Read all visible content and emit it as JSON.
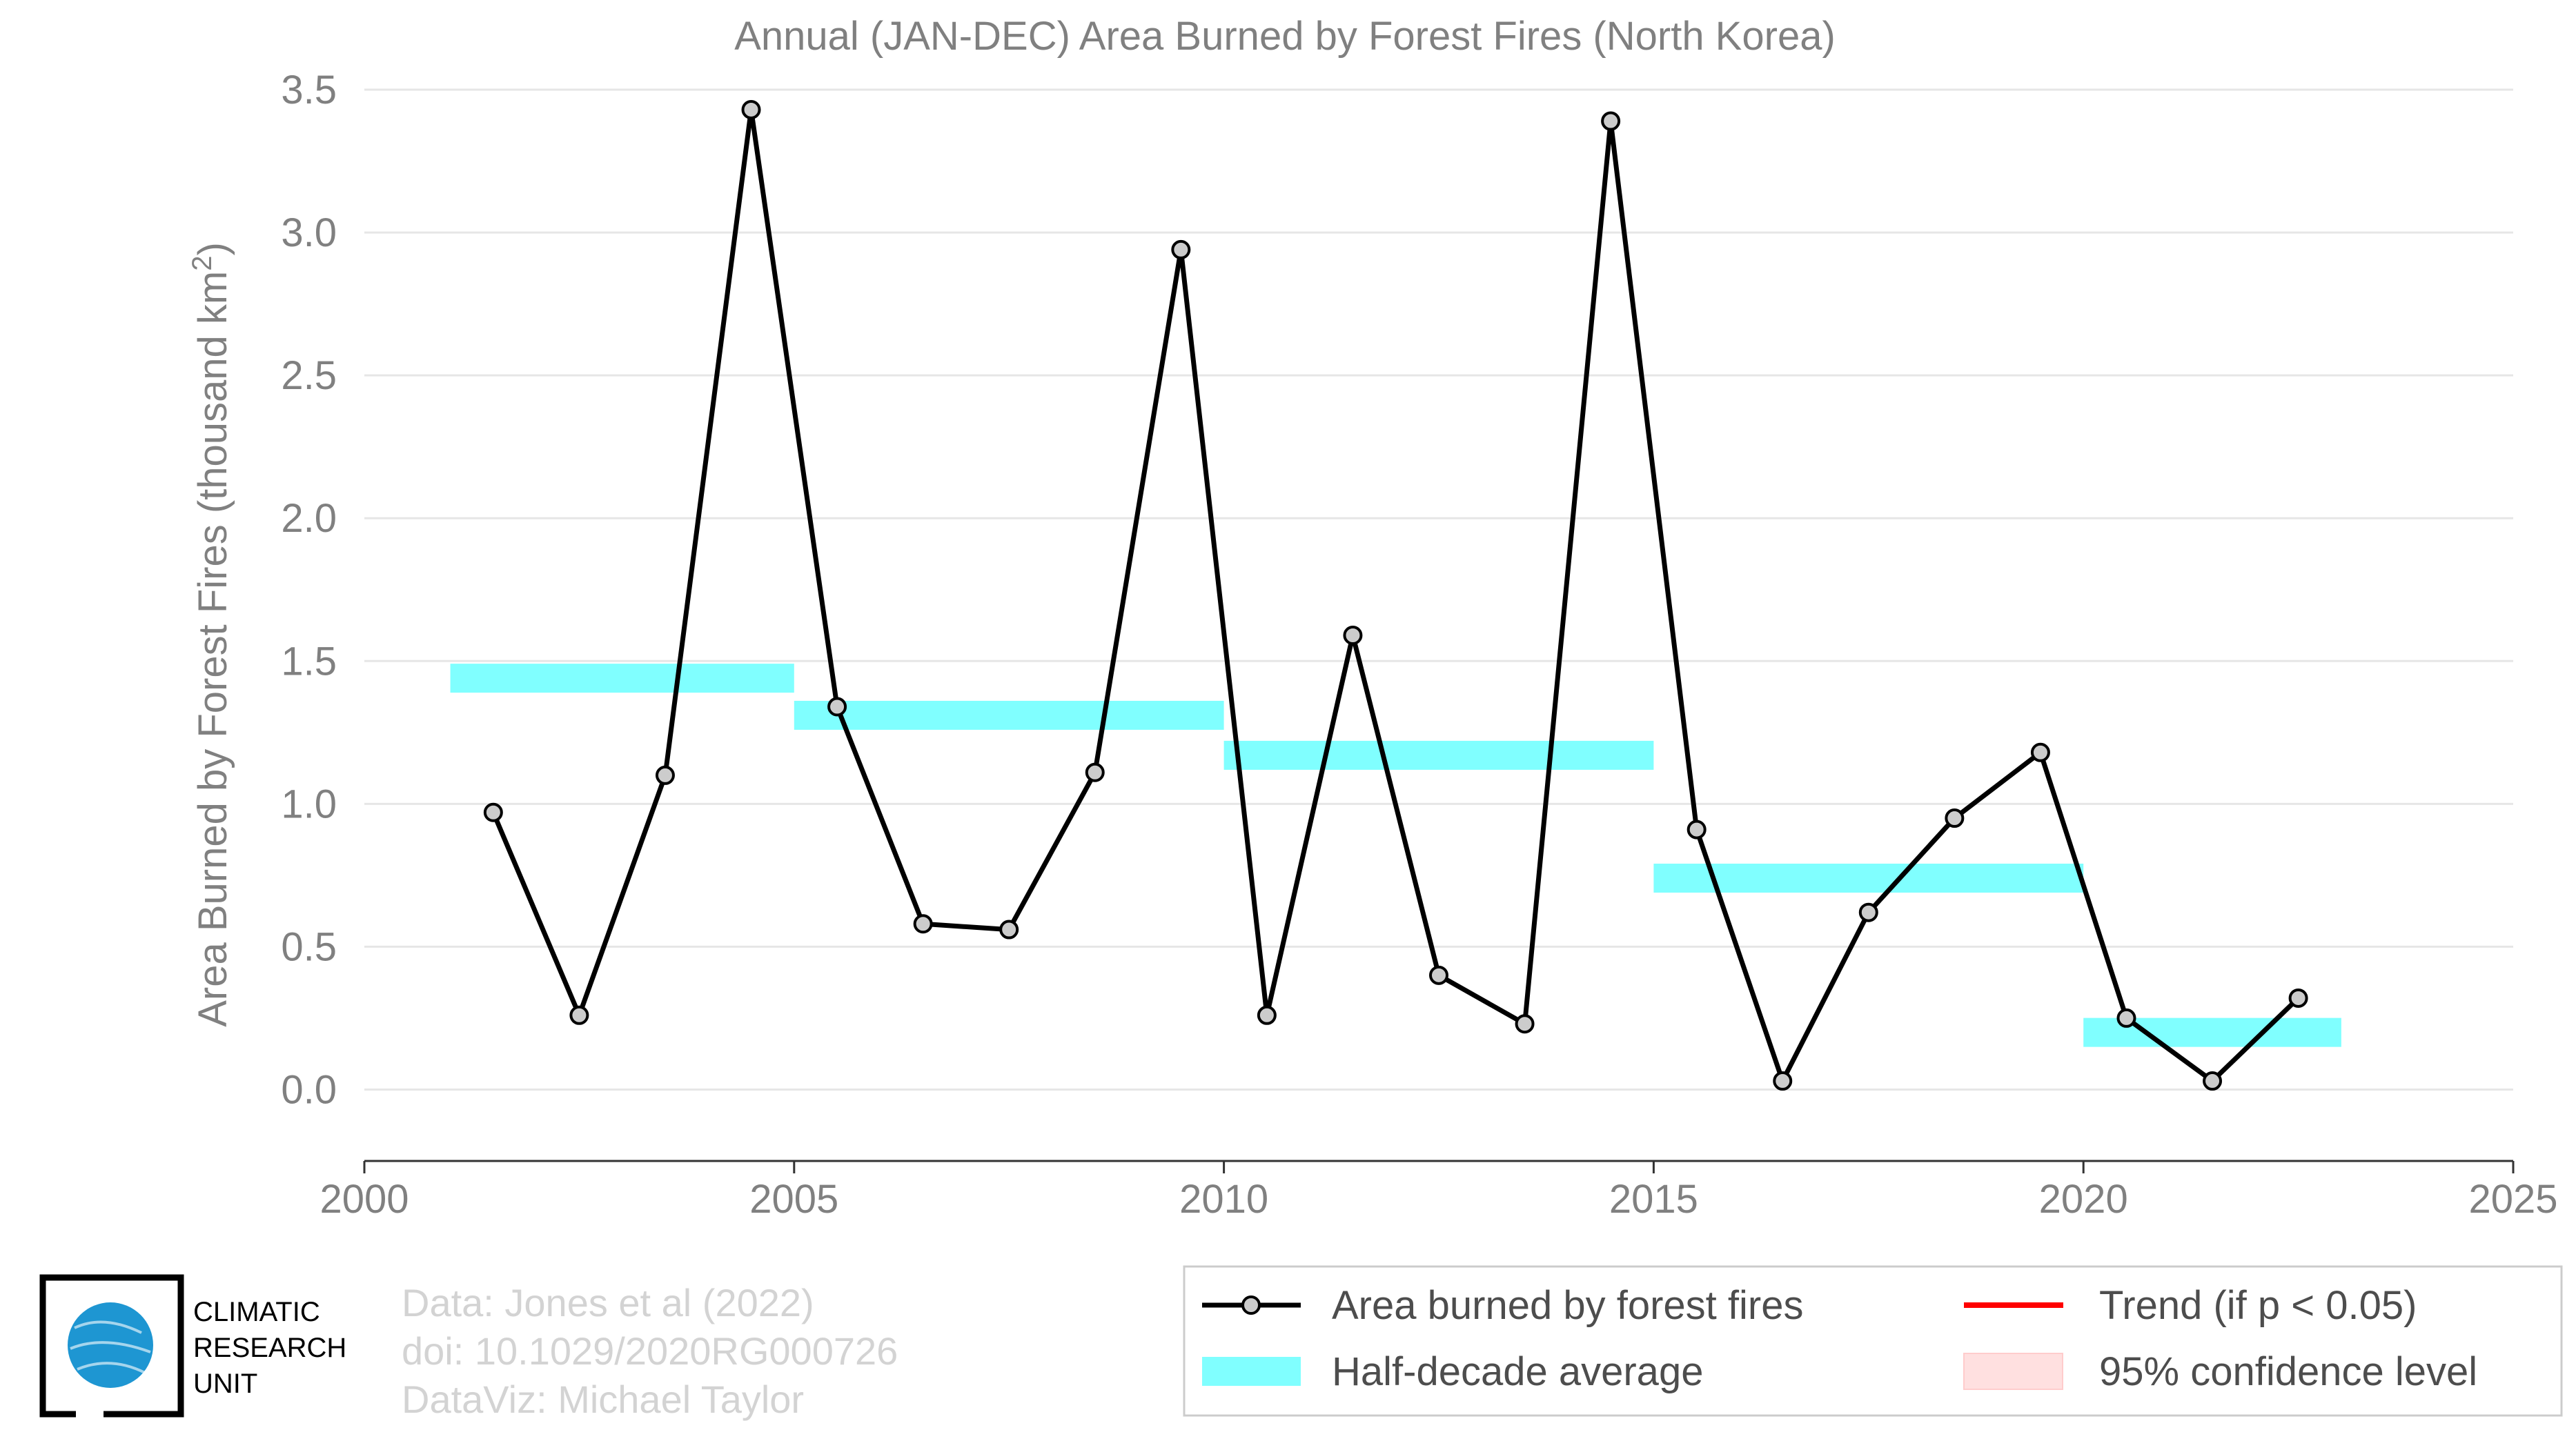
{
  "chart_data": {
    "type": "line",
    "title": "Annual (JAN-DEC) Area Burned by Forest Fires (North Korea)",
    "ylabel_main": "Area Burned by Forest Fires (thousand km",
    "ylabel_sup": "2",
    "ylabel_close": ")",
    "xlabel": "",
    "xlim": [
      2000,
      2025
    ],
    "ylim": [
      -0.25,
      3.5
    ],
    "x_ticks": [
      2000,
      2005,
      2010,
      2015,
      2020,
      2025
    ],
    "x_tick_labels": [
      "2000",
      "2005",
      "2010",
      "2015",
      "2020",
      "2025"
    ],
    "y_ticks": [
      0.0,
      0.5,
      1.0,
      1.5,
      2.0,
      2.5,
      3.0,
      3.5
    ],
    "y_tick_labels": [
      "0.0",
      "0.5",
      "1.0",
      "1.5",
      "2.0",
      "2.5",
      "3.0",
      "3.5"
    ],
    "grid": "horizontal",
    "series": [
      {
        "name": "Area burned by forest fires",
        "color": "#000000",
        "marker_fill": "#cccccc",
        "x": [
          2001.5,
          2002.5,
          2003.5,
          2004.5,
          2005.5,
          2006.5,
          2007.5,
          2008.5,
          2009.5,
          2010.5,
          2011.5,
          2012.5,
          2013.5,
          2014.5,
          2015.5,
          2016.5,
          2017.5,
          2018.5,
          2019.5,
          2020.5,
          2021.5,
          2022.5
        ],
        "values": [
          0.97,
          0.26,
          1.1,
          3.43,
          1.34,
          0.58,
          0.56,
          1.11,
          2.94,
          0.26,
          1.59,
          0.4,
          0.23,
          3.39,
          0.91,
          0.03,
          0.62,
          0.95,
          1.18,
          0.25,
          0.03,
          0.32
        ]
      }
    ],
    "half_decade_average": {
      "name": "Half-decade average",
      "color": "#80ffff",
      "segments": [
        {
          "x0": 2001,
          "x1": 2005,
          "value": 1.44
        },
        {
          "x0": 2005,
          "x1": 2010,
          "value": 1.31
        },
        {
          "x0": 2010,
          "x1": 2015,
          "value": 1.17
        },
        {
          "x0": 2015,
          "x1": 2020,
          "value": 0.74
        },
        {
          "x0": 2020,
          "x1": 2023,
          "value": 0.2
        }
      ]
    },
    "legend": {
      "placement": "bottom-right",
      "items": [
        {
          "label": "Area burned by forest fires",
          "kind": "line-marker",
          "color": "#000000"
        },
        {
          "label": "Trend (if p < 0.05)",
          "kind": "line",
          "color": "#ff0000"
        },
        {
          "label": "Half-decade average",
          "kind": "band",
          "color": "#80ffff"
        },
        {
          "label": "95% confidence level",
          "kind": "band",
          "color": "#ffe0e0"
        }
      ]
    }
  },
  "credits": {
    "line1": "Data: Jones et al (2022)",
    "line2": "doi: 10.1029/2020RG000726",
    "line3": "DataViz: Michael Taylor"
  },
  "logo": {
    "line1": "CLIMATIC",
    "line2": "RESEARCH",
    "line3": "UNIT",
    "globe_color": "#1e96d2"
  }
}
